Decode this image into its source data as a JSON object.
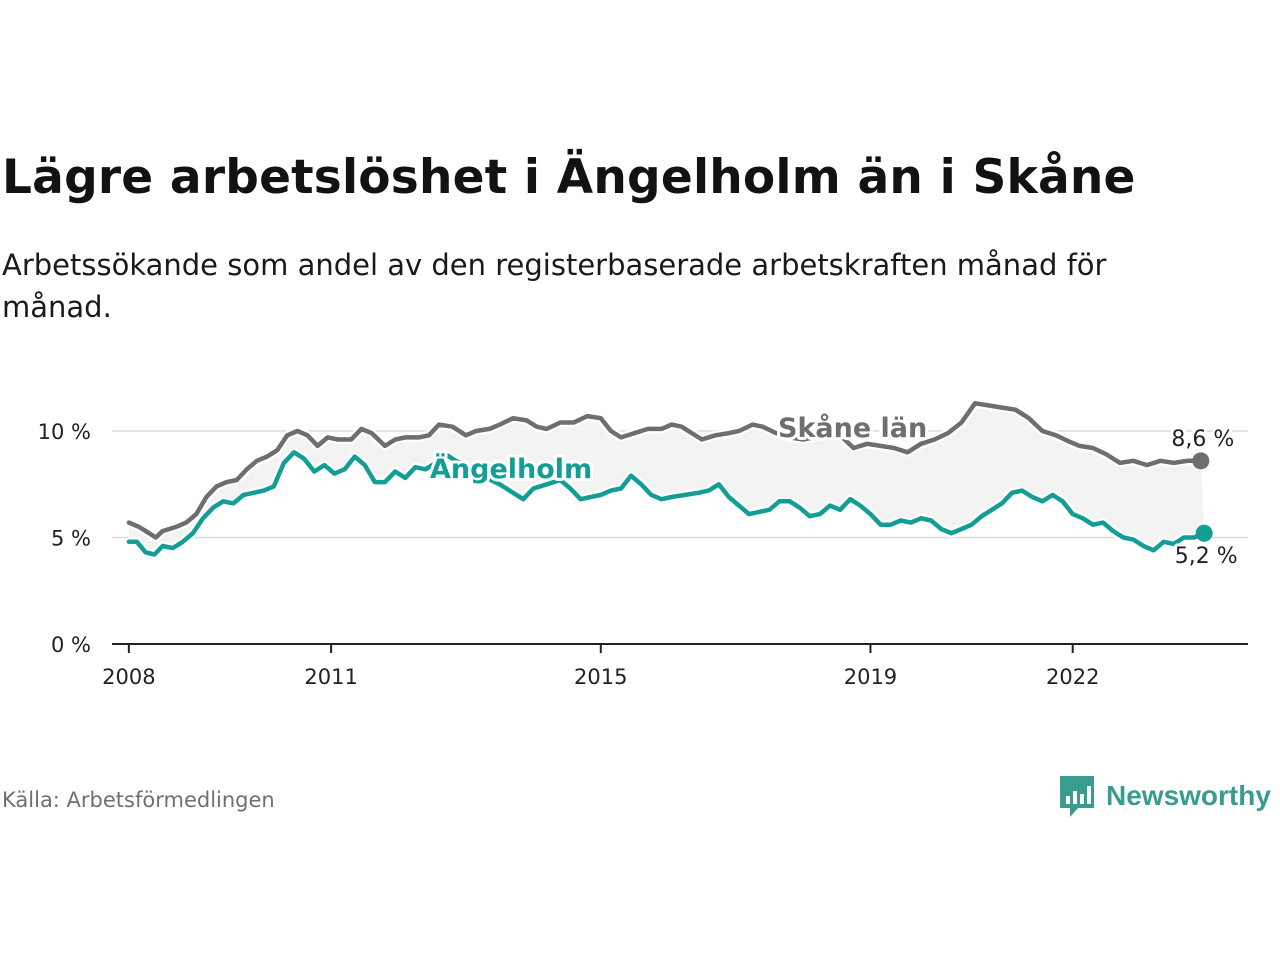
{
  "title": "Lägre arbetslöshet i Ängelholm än i Skåne",
  "subtitle": "Arbetssökande som andel av den registerbaserade arbetskraften månad för månad.",
  "source": "Källa: Arbetsförmedlingen",
  "brand": "Newsworthy",
  "colors": {
    "skane": "#6e6d72",
    "angelholm": "#129e94",
    "band": "#f3f3f3",
    "grid": "#dcdcdc",
    "brand": "#3a9c8e"
  },
  "chart_data": {
    "type": "line",
    "title": "Lägre arbetslöshet i Ängelholm än i Skåne",
    "xlabel": "",
    "ylabel": "",
    "x_unit": "year (decimal, monthly)",
    "xlim": [
      2007.75,
      2024.6
    ],
    "ylim": [
      0,
      12
    ],
    "x_ticks": [
      2008,
      2011,
      2015,
      2019,
      2022
    ],
    "x_tick_labels": [
      "2008",
      "2011",
      "2015",
      "2019",
      "2022"
    ],
    "y_ticks": [
      0,
      5,
      10
    ],
    "y_tick_labels": [
      "0 %",
      "5 %",
      "10 %"
    ],
    "grid": true,
    "legend": "inline labels",
    "series": [
      {
        "name": "Skåne län",
        "end_label": "8,6 %",
        "points": [
          [
            2008.0,
            5.7
          ],
          [
            2008.15,
            5.5
          ],
          [
            2008.3,
            5.2
          ],
          [
            2008.4,
            5.0
          ],
          [
            2008.5,
            5.3
          ],
          [
            2008.7,
            5.5
          ],
          [
            2008.85,
            5.7
          ],
          [
            2009.0,
            6.1
          ],
          [
            2009.15,
            6.9
          ],
          [
            2009.3,
            7.4
          ],
          [
            2009.45,
            7.6
          ],
          [
            2009.6,
            7.7
          ],
          [
            2009.75,
            8.2
          ],
          [
            2009.9,
            8.6
          ],
          [
            2010.05,
            8.8
          ],
          [
            2010.2,
            9.1
          ],
          [
            2010.35,
            9.8
          ],
          [
            2010.5,
            10.0
          ],
          [
            2010.65,
            9.8
          ],
          [
            2010.8,
            9.3
          ],
          [
            2010.95,
            9.7
          ],
          [
            2011.1,
            9.6
          ],
          [
            2011.3,
            9.6
          ],
          [
            2011.45,
            10.1
          ],
          [
            2011.6,
            9.9
          ],
          [
            2011.8,
            9.3
          ],
          [
            2011.95,
            9.6
          ],
          [
            2012.1,
            9.7
          ],
          [
            2012.3,
            9.7
          ],
          [
            2012.45,
            9.8
          ],
          [
            2012.6,
            10.3
          ],
          [
            2012.8,
            10.2
          ],
          [
            2013.0,
            9.8
          ],
          [
            2013.15,
            10.0
          ],
          [
            2013.35,
            10.1
          ],
          [
            2013.5,
            10.3
          ],
          [
            2013.7,
            10.6
          ],
          [
            2013.9,
            10.5
          ],
          [
            2014.05,
            10.2
          ],
          [
            2014.2,
            10.1
          ],
          [
            2014.4,
            10.4
          ],
          [
            2014.6,
            10.4
          ],
          [
            2014.8,
            10.7
          ],
          [
            2015.0,
            10.6
          ],
          [
            2015.15,
            10.0
          ],
          [
            2015.3,
            9.7
          ],
          [
            2015.5,
            9.9
          ],
          [
            2015.7,
            10.1
          ],
          [
            2015.9,
            10.1
          ],
          [
            2016.05,
            10.3
          ],
          [
            2016.2,
            10.2
          ],
          [
            2016.35,
            9.9
          ],
          [
            2016.5,
            9.6
          ],
          [
            2016.7,
            9.8
          ],
          [
            2016.9,
            9.9
          ],
          [
            2017.05,
            10.0
          ],
          [
            2017.25,
            10.3
          ],
          [
            2017.4,
            10.2
          ],
          [
            2017.6,
            9.9
          ],
          [
            2017.8,
            9.7
          ],
          [
            2018.0,
            9.6
          ],
          [
            2018.15,
            9.7
          ],
          [
            2018.35,
            9.9
          ],
          [
            2018.55,
            9.8
          ],
          [
            2018.75,
            9.2
          ],
          [
            2018.95,
            9.4
          ],
          [
            2019.15,
            9.3
          ],
          [
            2019.35,
            9.2
          ],
          [
            2019.55,
            9.0
          ],
          [
            2019.75,
            9.4
          ],
          [
            2019.95,
            9.6
          ],
          [
            2020.15,
            9.9
          ],
          [
            2020.35,
            10.4
          ],
          [
            2020.55,
            11.3
          ],
          [
            2020.75,
            11.2
          ],
          [
            2020.95,
            11.1
          ],
          [
            2021.15,
            11.0
          ],
          [
            2021.35,
            10.6
          ],
          [
            2021.55,
            10.0
          ],
          [
            2021.75,
            9.8
          ],
          [
            2021.95,
            9.5
          ],
          [
            2022.1,
            9.3
          ],
          [
            2022.3,
            9.2
          ],
          [
            2022.5,
            8.9
          ],
          [
            2022.7,
            8.5
          ],
          [
            2022.9,
            8.6
          ],
          [
            2023.1,
            8.4
          ],
          [
            2023.3,
            8.6
          ],
          [
            2023.5,
            8.5
          ],
          [
            2023.7,
            8.6
          ],
          [
            2023.9,
            8.6
          ]
        ]
      },
      {
        "name": "Ängelholm",
        "end_label": "5,2 %",
        "points": [
          [
            2008.0,
            4.8
          ],
          [
            2008.12,
            4.8
          ],
          [
            2008.25,
            4.3
          ],
          [
            2008.38,
            4.2
          ],
          [
            2008.5,
            4.6
          ],
          [
            2008.65,
            4.5
          ],
          [
            2008.8,
            4.8
          ],
          [
            2008.95,
            5.2
          ],
          [
            2009.1,
            5.9
          ],
          [
            2009.25,
            6.4
          ],
          [
            2009.4,
            6.7
          ],
          [
            2009.55,
            6.6
          ],
          [
            2009.7,
            7.0
          ],
          [
            2009.85,
            7.1
          ],
          [
            2010.0,
            7.2
          ],
          [
            2010.15,
            7.4
          ],
          [
            2010.3,
            8.5
          ],
          [
            2010.45,
            9.0
          ],
          [
            2010.6,
            8.7
          ],
          [
            2010.75,
            8.1
          ],
          [
            2010.9,
            8.4
          ],
          [
            2011.05,
            8.0
          ],
          [
            2011.2,
            8.2
          ],
          [
            2011.35,
            8.8
          ],
          [
            2011.5,
            8.4
          ],
          [
            2011.65,
            7.6
          ],
          [
            2011.8,
            7.6
          ],
          [
            2011.95,
            8.1
          ],
          [
            2012.1,
            7.8
          ],
          [
            2012.25,
            8.3
          ],
          [
            2012.4,
            8.2
          ],
          [
            2012.55,
            8.5
          ],
          [
            2012.7,
            8.9
          ],
          [
            2012.85,
            8.6
          ],
          [
            2013.0,
            8.4
          ],
          [
            2013.15,
            8.0
          ],
          [
            2013.3,
            7.8
          ],
          [
            2013.5,
            7.5
          ],
          [
            2013.7,
            7.1
          ],
          [
            2013.85,
            6.8
          ],
          [
            2014.0,
            7.3
          ],
          [
            2014.2,
            7.5
          ],
          [
            2014.4,
            7.7
          ],
          [
            2014.55,
            7.3
          ],
          [
            2014.7,
            6.8
          ],
          [
            2014.85,
            6.9
          ],
          [
            2015.0,
            7.0
          ],
          [
            2015.15,
            7.2
          ],
          [
            2015.3,
            7.3
          ],
          [
            2015.45,
            7.9
          ],
          [
            2015.6,
            7.5
          ],
          [
            2015.75,
            7.0
          ],
          [
            2015.9,
            6.8
          ],
          [
            2016.05,
            6.9
          ],
          [
            2016.25,
            7.0
          ],
          [
            2016.45,
            7.1
          ],
          [
            2016.6,
            7.2
          ],
          [
            2016.75,
            7.5
          ],
          [
            2016.9,
            6.9
          ],
          [
            2017.05,
            6.5
          ],
          [
            2017.2,
            6.1
          ],
          [
            2017.35,
            6.2
          ],
          [
            2017.5,
            6.3
          ],
          [
            2017.65,
            6.7
          ],
          [
            2017.8,
            6.7
          ],
          [
            2017.95,
            6.4
          ],
          [
            2018.1,
            6.0
          ],
          [
            2018.25,
            6.1
          ],
          [
            2018.4,
            6.5
          ],
          [
            2018.55,
            6.3
          ],
          [
            2018.7,
            6.8
          ],
          [
            2018.85,
            6.5
          ],
          [
            2019.0,
            6.1
          ],
          [
            2019.15,
            5.6
          ],
          [
            2019.3,
            5.6
          ],
          [
            2019.45,
            5.8
          ],
          [
            2019.6,
            5.7
          ],
          [
            2019.75,
            5.9
          ],
          [
            2019.9,
            5.8
          ],
          [
            2020.05,
            5.4
          ],
          [
            2020.2,
            5.2
          ],
          [
            2020.35,
            5.4
          ],
          [
            2020.5,
            5.6
          ],
          [
            2020.65,
            6.0
          ],
          [
            2020.8,
            6.3
          ],
          [
            2020.95,
            6.6
          ],
          [
            2021.1,
            7.1
          ],
          [
            2021.25,
            7.2
          ],
          [
            2021.4,
            6.9
          ],
          [
            2021.55,
            6.7
          ],
          [
            2021.7,
            7.0
          ],
          [
            2021.85,
            6.7
          ],
          [
            2022.0,
            6.1
          ],
          [
            2022.15,
            5.9
          ],
          [
            2022.3,
            5.6
          ],
          [
            2022.45,
            5.7
          ],
          [
            2022.6,
            5.3
          ],
          [
            2022.75,
            5.0
          ],
          [
            2022.9,
            4.9
          ],
          [
            2023.05,
            4.6
          ],
          [
            2023.2,
            4.4
          ],
          [
            2023.35,
            4.8
          ],
          [
            2023.5,
            4.7
          ],
          [
            2023.65,
            5.0
          ],
          [
            2023.8,
            5.0
          ],
          [
            2023.95,
            5.2
          ]
        ]
      }
    ]
  }
}
